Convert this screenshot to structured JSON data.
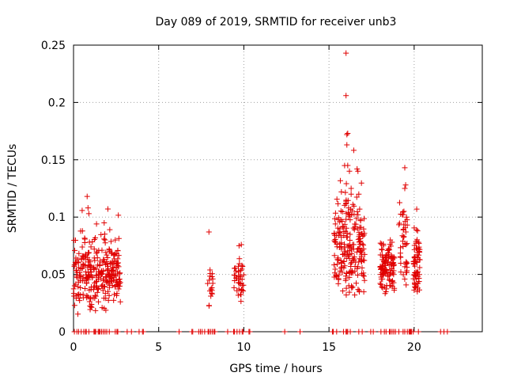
{
  "chart_data": {
    "type": "scatter",
    "title": "Day 089 of 2019, SRMTID for receiver unb3",
    "xlabel": "GPS time / hours",
    "ylabel": "SRMTID / TECUs",
    "xlim": [
      0,
      24
    ],
    "ylim": [
      0,
      0.25
    ],
    "xticks": [
      0,
      5,
      10,
      15,
      20
    ],
    "yticks": [
      0,
      0.05,
      0.1,
      0.15,
      0.2,
      0.25
    ],
    "xtick_labels": [
      "0",
      "5",
      "10",
      "15",
      "20"
    ],
    "ytick_labels": [
      "0",
      "0.05",
      "0.1",
      "0.15",
      "0.2",
      "0.25"
    ],
    "grid": true,
    "marker": "+",
    "color": "#e00000",
    "zero_x": [
      0.05,
      0.2,
      0.3,
      0.45,
      0.6,
      0.7,
      0.75,
      0.9,
      1.2,
      1.25,
      1.3,
      1.45,
      1.5,
      1.55,
      1.65,
      1.75,
      1.85,
      1.95,
      2.1,
      2.45,
      2.55,
      2.6,
      3.15,
      3.4,
      3.85,
      4.05,
      4.1,
      6.2,
      6.95,
      7.0,
      7.35,
      7.45,
      7.55,
      7.7,
      7.9,
      7.95,
      8.05,
      8.15,
      8.25,
      8.3,
      9.05,
      9.4,
      9.45,
      9.6,
      9.75,
      9.9,
      9.95,
      10.3,
      10.35,
      12.4,
      13.3,
      15.2,
      15.25,
      15.45,
      15.85,
      16.0,
      16.05,
      16.1,
      16.25,
      16.75,
      16.95,
      17.45,
      17.6,
      18.05,
      18.25,
      18.35,
      18.55,
      18.6,
      18.7,
      18.8,
      18.9,
      19.1,
      19.35,
      19.45,
      19.6,
      19.7,
      19.75,
      19.8,
      19.85,
      19.95,
      20.25,
      21.55,
      21.75,
      21.95
    ],
    "clusters": [
      {
        "t0": 0.0,
        "t1": 2.75,
        "n": 300,
        "mean": 0.052,
        "sd": 0.015,
        "min": 0.015,
        "max": 0.118
      },
      {
        "t0": 7.85,
        "t1": 8.2,
        "n": 18,
        "mean": 0.042,
        "sd": 0.013,
        "min": 0.02,
        "max": 0.087
      },
      {
        "t0": 9.4,
        "t1": 10.0,
        "n": 40,
        "mean": 0.049,
        "sd": 0.011,
        "min": 0.026,
        "max": 0.076
      },
      {
        "t0": 15.3,
        "t1": 17.1,
        "n": 220,
        "mean": 0.075,
        "sd": 0.022,
        "min": 0.032,
        "max": 0.243
      },
      {
        "t0": 18.0,
        "t1": 18.85,
        "n": 110,
        "mean": 0.057,
        "sd": 0.012,
        "min": 0.03,
        "max": 0.08
      },
      {
        "t0": 19.1,
        "t1": 19.6,
        "n": 40,
        "mean": 0.078,
        "sd": 0.018,
        "min": 0.04,
        "max": 0.143
      },
      {
        "t0": 19.95,
        "t1": 20.35,
        "n": 60,
        "mean": 0.058,
        "sd": 0.014,
        "min": 0.033,
        "max": 0.107
      }
    ],
    "highlights": [
      {
        "x": 0.8,
        "y": 0.118
      },
      {
        "x": 0.85,
        "y": 0.108
      },
      {
        "x": 0.9,
        "y": 0.103
      },
      {
        "x": 1.35,
        "y": 0.094
      },
      {
        "x": 1.8,
        "y": 0.095
      },
      {
        "x": 2.45,
        "y": 0.08
      },
      {
        "x": 7.95,
        "y": 0.087
      },
      {
        "x": 9.85,
        "y": 0.076
      },
      {
        "x": 16.0,
        "y": 0.243
      },
      {
        "x": 16.0,
        "y": 0.206
      },
      {
        "x": 16.05,
        "y": 0.172
      },
      {
        "x": 16.1,
        "y": 0.173
      },
      {
        "x": 16.05,
        "y": 0.163
      },
      {
        "x": 16.1,
        "y": 0.145
      },
      {
        "x": 16.2,
        "y": 0.14
      },
      {
        "x": 16.65,
        "y": 0.142
      },
      {
        "x": 16.7,
        "y": 0.14
      },
      {
        "x": 16.3,
        "y": 0.12
      },
      {
        "x": 16.75,
        "y": 0.12
      },
      {
        "x": 16.3,
        "y": 0.125
      },
      {
        "x": 16.4,
        "y": 0.111
      },
      {
        "x": 16.15,
        "y": 0.108
      },
      {
        "x": 16.8,
        "y": 0.107
      },
      {
        "x": 16.0,
        "y": 0.098
      },
      {
        "x": 16.7,
        "y": 0.102
      },
      {
        "x": 18.6,
        "y": 0.08
      },
      {
        "x": 18.7,
        "y": 0.078
      },
      {
        "x": 19.45,
        "y": 0.143
      },
      {
        "x": 19.5,
        "y": 0.128
      },
      {
        "x": 19.45,
        "y": 0.125
      },
      {
        "x": 19.4,
        "y": 0.105
      },
      {
        "x": 19.55,
        "y": 0.1
      },
      {
        "x": 19.4,
        "y": 0.083
      },
      {
        "x": 20.15,
        "y": 0.107
      },
      {
        "x": 20.2,
        "y": 0.088
      },
      {
        "x": 20.25,
        "y": 0.078
      }
    ]
  }
}
